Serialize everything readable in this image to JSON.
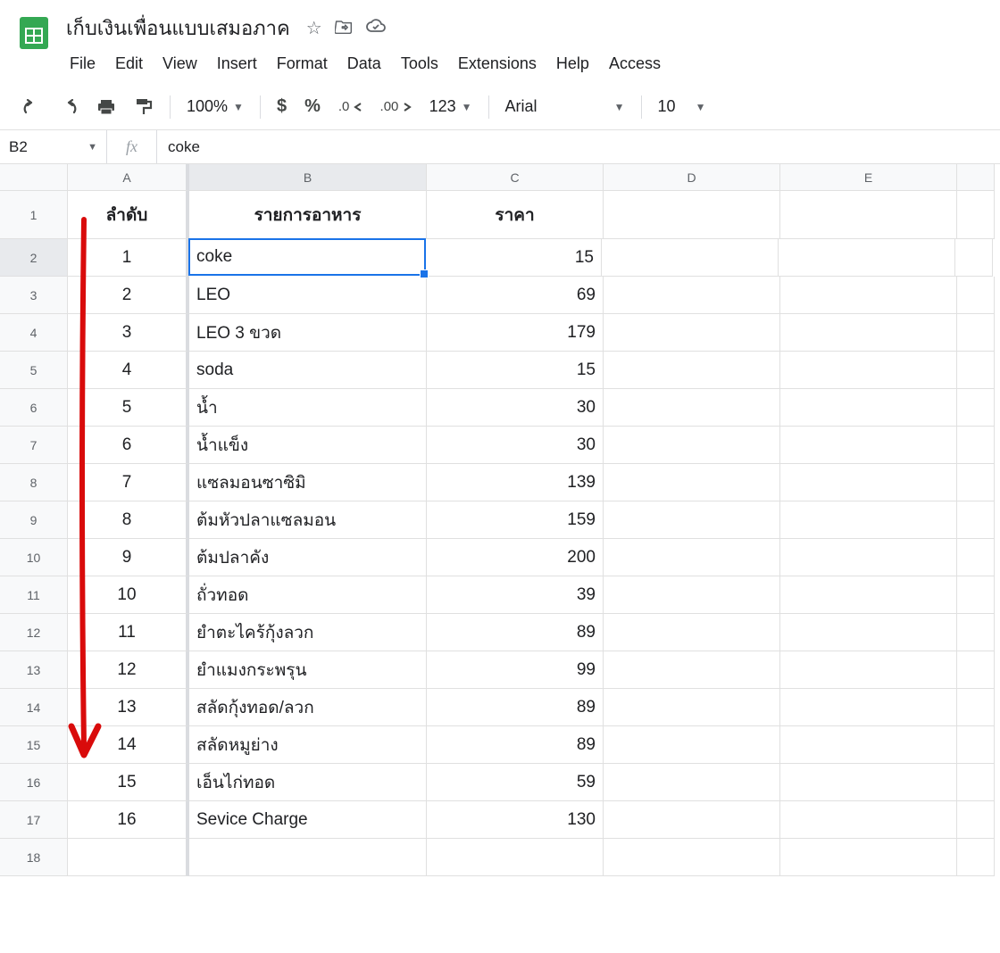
{
  "header": {
    "doc_title": "เก็บเงินเพื่อนแบบเสมอภาค",
    "menu": [
      "File",
      "Edit",
      "View",
      "Insert",
      "Format",
      "Data",
      "Tools",
      "Extensions",
      "Help",
      "Access"
    ]
  },
  "toolbar": {
    "zoom": "100%",
    "font": "Arial",
    "font_size": "10"
  },
  "formula_bar": {
    "cell_ref": "B2",
    "fx_symbol": "fx",
    "formula_value": "coke"
  },
  "grid": {
    "column_headers": [
      "A",
      "B",
      "C",
      "D",
      "E"
    ],
    "column_widths": {
      "A": 136,
      "B": 266,
      "C": 198,
      "D": 198,
      "E": 198
    },
    "header_row": {
      "A": "ลำดับ",
      "B": "รายการอาหาร",
      "C": "ราคา"
    },
    "active_cell": "B2",
    "rows": [
      {
        "n": 2,
        "A": "1",
        "B": "coke",
        "C": "15"
      },
      {
        "n": 3,
        "A": "2",
        "B": "LEO",
        "C": "69"
      },
      {
        "n": 4,
        "A": "3",
        "B": "LEO 3 ขวด",
        "C": "179"
      },
      {
        "n": 5,
        "A": "4",
        "B": "soda",
        "C": "15"
      },
      {
        "n": 6,
        "A": "5",
        "B": "น้ำ",
        "C": "30"
      },
      {
        "n": 7,
        "A": "6",
        "B": "น้ำแข็ง",
        "C": "30"
      },
      {
        "n": 8,
        "A": "7",
        "B": "แซลมอนซาซิมิ",
        "C": "139"
      },
      {
        "n": 9,
        "A": "8",
        "B": "ต้มหัวปลาแซลมอน",
        "C": "159"
      },
      {
        "n": 10,
        "A": "9",
        "B": "ต้มปลาคัง",
        "C": "200"
      },
      {
        "n": 11,
        "A": "10",
        "B": "ถั่วทอด",
        "C": "39"
      },
      {
        "n": 12,
        "A": "11",
        "B": "ยำตะไคร้กุ้งลวก",
        "C": "89"
      },
      {
        "n": 13,
        "A": "12",
        "B": "ยำแมงกระพรุน",
        "C": "99"
      },
      {
        "n": 14,
        "A": "13",
        "B": "สลัดกุ้งทอด/ลวก",
        "C": "89"
      },
      {
        "n": 15,
        "A": "14",
        "B": "สลัดหมูย่าง",
        "C": "89"
      },
      {
        "n": 16,
        "A": "15",
        "B": "เอ็นไก่ทอด",
        "C": "59"
      },
      {
        "n": 17,
        "A": "16",
        "B": "Sevice Charge",
        "C": "130"
      },
      {
        "n": 18,
        "A": "",
        "B": "",
        "C": ""
      }
    ]
  },
  "annotation": {
    "arrow_color": "#d90b0b",
    "stroke_width": 6
  },
  "colors": {
    "logo_bg": "#34a853",
    "selection_blue": "#1a73e8",
    "header_bg": "#f8f9fa",
    "border": "#e0e0e0"
  }
}
